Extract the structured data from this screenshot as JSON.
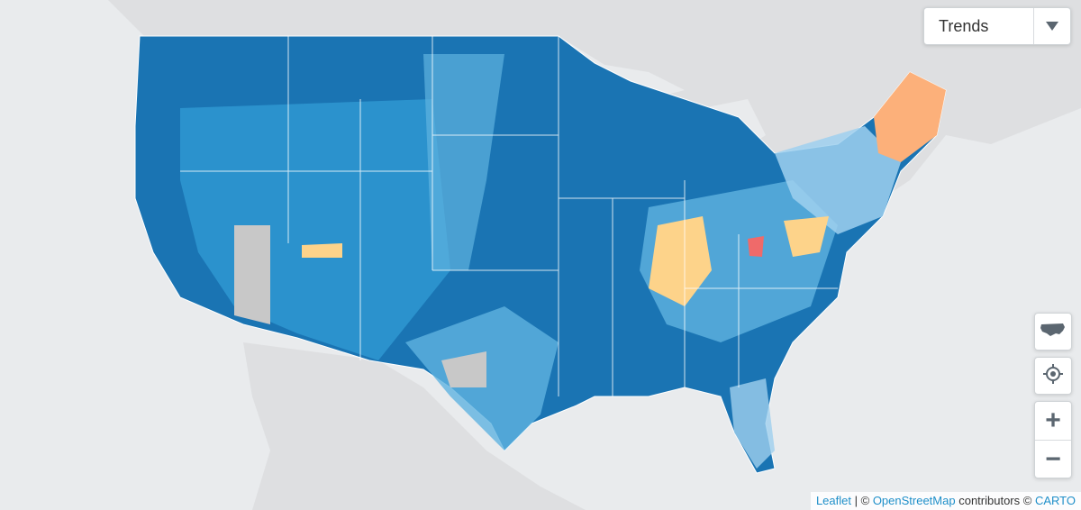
{
  "map": {
    "land_color": "#dfe1e3",
    "water_color": "#e9ebed",
    "colors": {
      "dark_blue": "#1a74b3",
      "mid_blue": "#2e96cf",
      "light_blue": "#5fb3e0",
      "pale_blue": "#9fd0ee",
      "gray": "#c8c8c8",
      "yellow": "#fdd38a",
      "orange": "#fcb07a",
      "red": "#ef6a6a"
    }
  },
  "layer_select": {
    "selected": "Trends"
  },
  "controls": {
    "usa_icon": "usa-map-icon",
    "locate_icon": "crosshair-icon",
    "zoom_in": "+",
    "zoom_out": "−"
  },
  "attribution": {
    "leaflet": "Leaflet",
    "sep1": "| ©",
    "osm": "OpenStreetMap",
    "contributors": "contributors ©",
    "carto": "CARTO"
  }
}
